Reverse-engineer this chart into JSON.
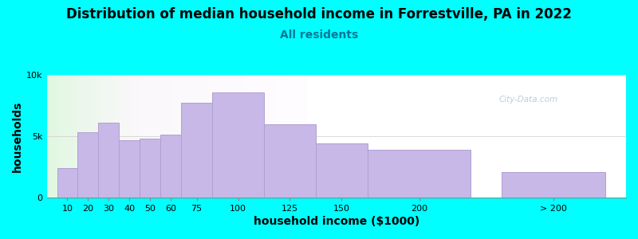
{
  "title": "Distribution of median household income in Forrestville, PA in 2022",
  "subtitle": "All residents",
  "xlabel": "household income ($1000)",
  "ylabel": "households",
  "background_color": "#00FFFF",
  "bar_color": "#c8b8e8",
  "bar_edge_color": "#b0a0d0",
  "categories": [
    "10",
    "20",
    "30",
    "40",
    "50",
    "60",
    "75",
    "100",
    "125",
    "150",
    "200",
    "> 200"
  ],
  "values": [
    2400,
    5300,
    6100,
    4700,
    4800,
    5100,
    7700,
    8600,
    6000,
    4400,
    3900,
    2100
  ],
  "bar_widths": [
    10,
    10,
    10,
    10,
    10,
    10,
    15,
    25,
    25,
    25,
    50,
    50
  ],
  "bar_lefts": [
    5,
    15,
    25,
    35,
    45,
    55,
    65,
    80,
    105,
    130,
    155,
    220
  ],
  "ylim": [
    0,
    10000
  ],
  "ytick_labels": [
    "0",
    "5k",
    "10k"
  ],
  "ytick_vals": [
    0,
    5000,
    10000
  ],
  "title_fontsize": 12,
  "subtitle_fontsize": 10,
  "axis_label_fontsize": 10,
  "watermark": "City-Data.com"
}
